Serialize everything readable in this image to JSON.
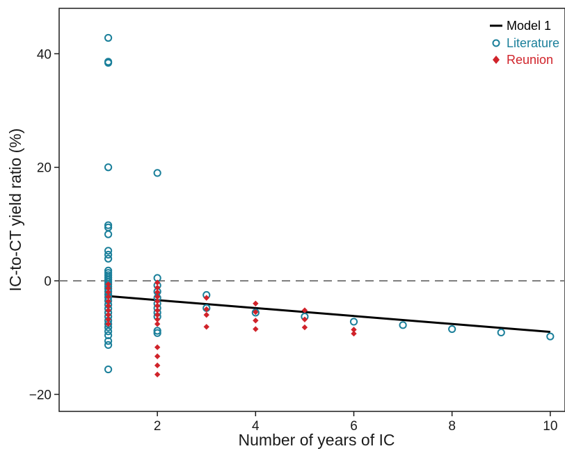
{
  "chart_data": {
    "type": "scatter",
    "xlabel": "Number of years of IC",
    "ylabel": "IC-to-CT yield ratio (%)",
    "xlim": [
      0.0,
      10.3
    ],
    "ylim": [
      -23,
      48
    ],
    "xticks": [
      2,
      4,
      6,
      8,
      10
    ],
    "yticks": [
      -20,
      0,
      20,
      40
    ],
    "reference_line": {
      "y": 0,
      "style": "dashed",
      "color": "#7a7a7a"
    },
    "legend": {
      "position": "top-right"
    },
    "series": [
      {
        "name": "Model 1",
        "kind": "line",
        "color": "#000000",
        "points": [
          [
            1,
            -2.7
          ],
          [
            10,
            -9.0
          ]
        ]
      },
      {
        "name": "Literature",
        "kind": "open-circle",
        "color": "#1a7f9a",
        "points": [
          [
            1,
            42.8
          ],
          [
            1,
            38.6
          ],
          [
            1,
            38.4
          ],
          [
            1,
            20.0
          ],
          [
            1,
            9.8
          ],
          [
            1,
            9.4
          ],
          [
            1,
            8.2
          ],
          [
            1,
            5.3
          ],
          [
            1,
            4.6
          ],
          [
            1,
            3.9
          ],
          [
            1,
            1.8
          ],
          [
            1,
            1.4
          ],
          [
            1,
            1.0
          ],
          [
            1,
            0.6
          ],
          [
            1,
            0.2
          ],
          [
            1,
            -0.2
          ],
          [
            1,
            -0.6
          ],
          [
            1,
            -1.0
          ],
          [
            1,
            -1.4
          ],
          [
            1,
            -1.9
          ],
          [
            1,
            -2.4
          ],
          [
            1,
            -2.9
          ],
          [
            1,
            -3.5
          ],
          [
            1,
            -4.2
          ],
          [
            1,
            -4.9
          ],
          [
            1,
            -5.6
          ],
          [
            1,
            -6.3
          ],
          [
            1,
            -7.0
          ],
          [
            1,
            -7.6
          ],
          [
            1,
            -8.2
          ],
          [
            1,
            -8.9
          ],
          [
            1,
            -9.6
          ],
          [
            1,
            -10.6
          ],
          [
            1,
            -11.3
          ],
          [
            1,
            -15.6
          ],
          [
            2,
            19.0
          ],
          [
            2,
            0.5
          ],
          [
            2,
            -0.8
          ],
          [
            2,
            -1.9
          ],
          [
            2,
            -3.0
          ],
          [
            2,
            -4.0
          ],
          [
            2,
            -4.8
          ],
          [
            2,
            -5.6
          ],
          [
            2,
            -6.3
          ],
          [
            2,
            -8.8
          ],
          [
            2,
            -9.2
          ],
          [
            3,
            -2.5
          ],
          [
            3,
            -4.8
          ],
          [
            4,
            -5.6
          ],
          [
            5,
            -6.3
          ],
          [
            6,
            -7.2
          ],
          [
            7,
            -7.8
          ],
          [
            8,
            -8.5
          ],
          [
            9,
            -9.1
          ],
          [
            10,
            -9.8
          ]
        ]
      },
      {
        "name": "Reunion",
        "kind": "filled-diamond",
        "color": "#d0232a",
        "points": [
          [
            1,
            -0.6
          ],
          [
            1,
            -1.3
          ],
          [
            1,
            -2.0
          ],
          [
            1,
            -2.8
          ],
          [
            1,
            -3.6
          ],
          [
            1,
            -4.4
          ],
          [
            1,
            -5.2
          ],
          [
            1,
            -6.0
          ],
          [
            1,
            -6.8
          ],
          [
            1,
            -7.6
          ],
          [
            2,
            -0.3
          ],
          [
            2,
            -1.2
          ],
          [
            2,
            -2.0
          ],
          [
            2,
            -2.8
          ],
          [
            2,
            -3.6
          ],
          [
            2,
            -4.4
          ],
          [
            2,
            -5.2
          ],
          [
            2,
            -6.0
          ],
          [
            2,
            -6.8
          ],
          [
            2,
            -7.6
          ],
          [
            2,
            -11.7
          ],
          [
            2,
            -13.3
          ],
          [
            2,
            -14.9
          ],
          [
            2,
            -16.5
          ],
          [
            3,
            -3.0
          ],
          [
            3,
            -5.0
          ],
          [
            3,
            -6.0
          ],
          [
            3,
            -8.1
          ],
          [
            4,
            -4.0
          ],
          [
            4,
            -5.5
          ],
          [
            4,
            -7.0
          ],
          [
            4,
            -8.5
          ],
          [
            5,
            -5.2
          ],
          [
            5,
            -6.8
          ],
          [
            5,
            -8.2
          ],
          [
            6,
            -8.6
          ],
          [
            6,
            -9.3
          ]
        ]
      }
    ]
  }
}
